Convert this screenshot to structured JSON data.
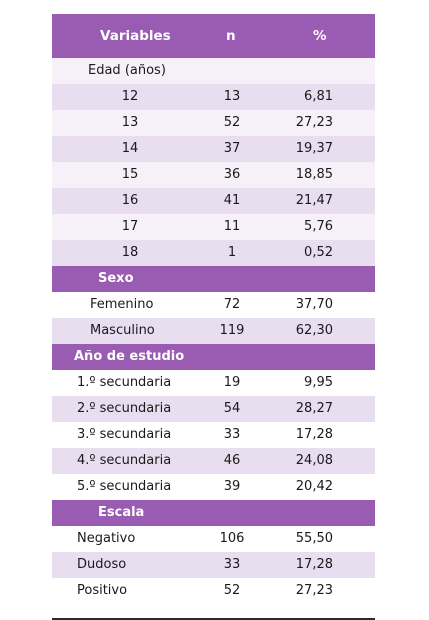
{
  "header": {
    "variables": "Variables",
    "n": "n",
    "pct": "%"
  },
  "sections": [
    {
      "title": "Edad (años)",
      "style": "plain",
      "rows": [
        {
          "label": "12",
          "n": "13",
          "pct": "6,81"
        },
        {
          "label": "13",
          "n": "52",
          "pct": "27,23"
        },
        {
          "label": "14",
          "n": "37",
          "pct": "19,37"
        },
        {
          "label": "15",
          "n": "36",
          "pct": "18,85"
        },
        {
          "label": "16",
          "n": "41",
          "pct": "21,47"
        },
        {
          "label": "17",
          "n": "11",
          "pct": "5,76"
        },
        {
          "label": "18",
          "n": "1",
          "pct": "0,52"
        }
      ]
    },
    {
      "title": "Sexo",
      "style": "band",
      "rows": [
        {
          "label": "Femenino",
          "n": "72",
          "pct": "37,70"
        },
        {
          "label": "Masculino",
          "n": "119",
          "pct": "62,30"
        }
      ]
    },
    {
      "title": "Año de estudio",
      "style": "band",
      "rows": [
        {
          "label": "1.º secundaria",
          "n": "19",
          "pct": "9,95"
        },
        {
          "label": "2.º secundaria",
          "n": "54",
          "pct": "28,27"
        },
        {
          "label": "3.º secundaria",
          "n": "33",
          "pct": "17,28"
        },
        {
          "label": "4.º secundaria",
          "n": "46",
          "pct": "24,08"
        },
        {
          "label": "5.º secundaria",
          "n": "39",
          "pct": "20,42"
        }
      ]
    },
    {
      "title": "Escala",
      "style": "band",
      "rows": [
        {
          "label": "Negativo",
          "n": "106",
          "pct": "55,50"
        },
        {
          "label": "Dudoso",
          "n": "33",
          "pct": "17,28"
        },
        {
          "label": "Positivo",
          "n": "52",
          "pct": "27,23"
        }
      ]
    }
  ],
  "colors": {
    "header": "#9a5bb2",
    "row_shade": "#e9ddf0",
    "row_light": "#f6f1f9"
  }
}
